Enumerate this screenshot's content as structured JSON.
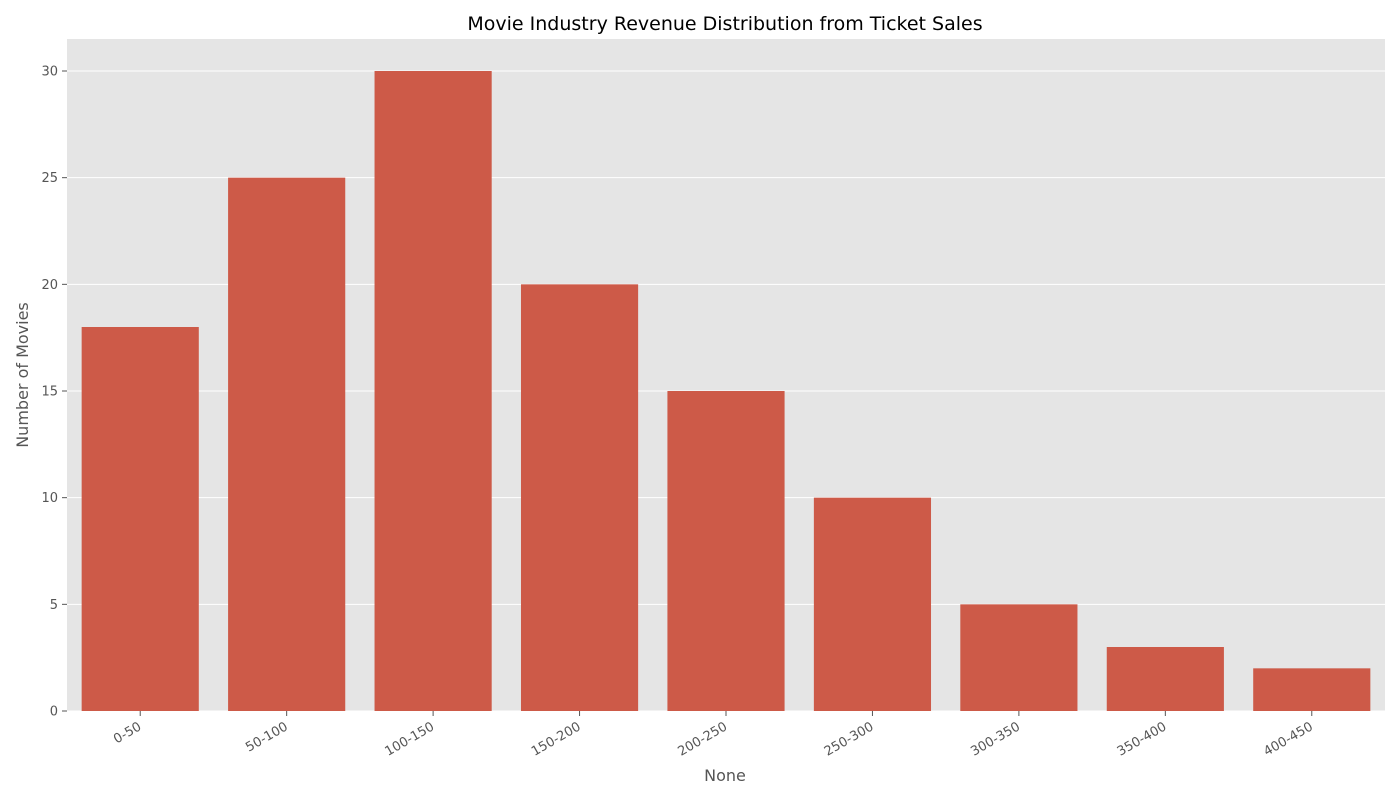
{
  "chart_data": {
    "type": "bar",
    "title": "Movie Industry Revenue Distribution from Ticket Sales",
    "xlabel": "None",
    "ylabel": "Number of Movies",
    "categories": [
      "0-50",
      "50-100",
      "100-150",
      "150-200",
      "200-250",
      "250-300",
      "300-350",
      "350-400",
      "400-450"
    ],
    "values": [
      18,
      25,
      30,
      20,
      15,
      10,
      5,
      3,
      2
    ],
    "ylim": [
      0,
      31.5
    ],
    "yticks": [
      "0",
      "5",
      "10",
      "15",
      "20",
      "25",
      "30"
    ],
    "grid": true,
    "colors": {
      "bar": "#CD5A48",
      "plot_background": "#E5E5E5"
    }
  }
}
